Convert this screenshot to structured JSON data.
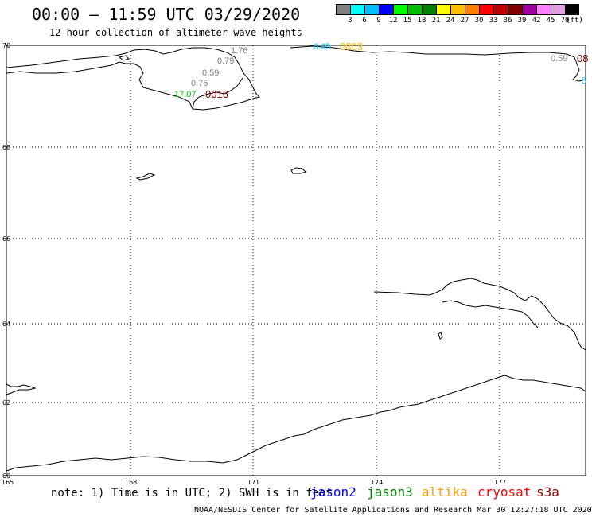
{
  "header": {
    "title": "00:00 – 11:59 UTC 03/29/2020",
    "subtitle": "12 hour collection of altimeter wave heights"
  },
  "colorbar": {
    "colors": [
      "#7f7f7f",
      "#00ffff",
      "#00bfff",
      "#0000ff",
      "#00ff00",
      "#00bf00",
      "#008000",
      "#ffff00",
      "#ffbf00",
      "#ff8000",
      "#ff0000",
      "#bf0000",
      "#800000",
      "#a000a0",
      "#ff80ff",
      "#e0a0e0",
      "#000000"
    ],
    "labels": [
      "3",
      "6",
      "9",
      "12",
      "15",
      "18",
      "21",
      "24",
      "27",
      "30",
      "33",
      "36",
      "39",
      "42",
      "45",
      "70",
      "(ft)"
    ]
  },
  "map": {
    "lat_labels": [
      "70",
      "68",
      "66",
      "64",
      "62",
      "60"
    ],
    "lon_labels": [
      "165",
      "168",
      "171",
      "174",
      "177"
    ],
    "observations": [
      {
        "text": "1.76",
        "color": "#7f7f7f"
      },
      {
        "text": "0.79",
        "color": "#7f7f7f"
      },
      {
        "text": "0.59",
        "color": "#7f7f7f"
      },
      {
        "text": "0.76",
        "color": "#7f7f7f"
      },
      {
        "text": "17.07",
        "color": "#00bf00"
      },
      {
        "text": "0016",
        "color": "#800000"
      },
      {
        "text": "6.69",
        "color": "#00bfff"
      },
      {
        "text": "0803",
        "color": "#ffbf00"
      },
      {
        "text": "0.59",
        "color": "#7f7f7f"
      },
      {
        "text": "08",
        "color": "#800000"
      },
      {
        "text": "5",
        "color": "#00bfff"
      }
    ]
  },
  "note": "note: 1) Time is in UTC; 2) SWH is in feet",
  "legend": [
    {
      "name": "jason2",
      "color": "#0000ff"
    },
    {
      "name": "jason3",
      "color": "#008000"
    },
    {
      "name": "altika",
      "color": "#ffa000"
    },
    {
      "name": "cryosat",
      "color": "#ff0000"
    },
    {
      "name": "s3a",
      "color": "#a00000"
    }
  ],
  "footer": "NOAA/NESDIS Center for Satellite Applications and Research   Mar 30 12:27:18 UTC 2020"
}
